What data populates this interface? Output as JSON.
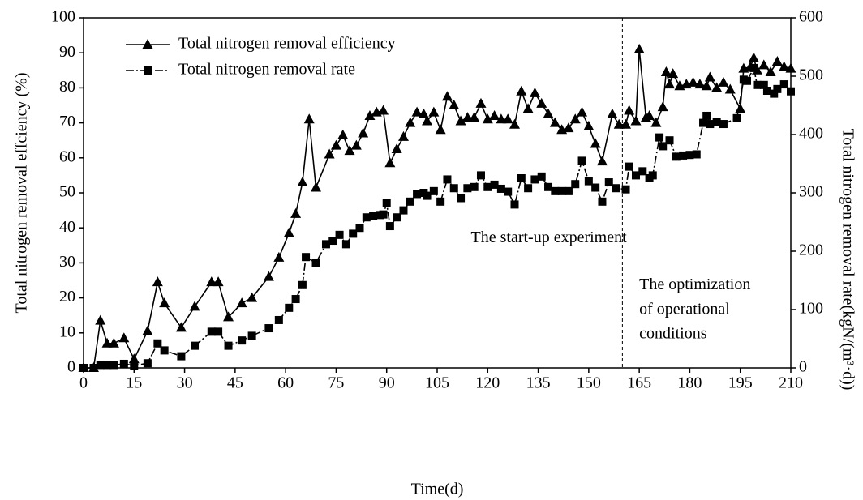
{
  "chart_data": {
    "type": "line",
    "xlabel": "Time(d)",
    "ylabel": "Total nitrogen removal effciency (%)",
    "y2label": "Total nitrogen removal rate(kgN/(m³·d))",
    "xlim": [
      0,
      210
    ],
    "xticks": [
      0,
      15,
      30,
      45,
      60,
      75,
      90,
      105,
      120,
      135,
      150,
      165,
      180,
      195,
      210
    ],
    "ylim": [
      0,
      100
    ],
    "yticks": [
      0,
      10,
      20,
      30,
      40,
      50,
      60,
      70,
      80,
      90,
      100
    ],
    "y2lim": [
      0,
      600
    ],
    "y2ticks": [
      0,
      100,
      200,
      300,
      400,
      500,
      600
    ],
    "legend": "upper left",
    "vline": {
      "x": 160,
      "style": "dashed"
    },
    "annotations": [
      {
        "text": "The start-up experiment",
        "x": 115,
        "y": 37
      },
      {
        "text": "The optimization",
        "x": 165,
        "y": 23.5
      },
      {
        "text": "of operational",
        "x": 165,
        "y": 16.5
      },
      {
        "text": "conditions",
        "x": 165,
        "y": 9.5
      }
    ],
    "series": [
      {
        "name": "Total nitrogen removal efficiency",
        "color": "#000000",
        "marker": "triangle",
        "axis": "y",
        "x": [
          0,
          3,
          5,
          7,
          9,
          12,
          15,
          19,
          22,
          24,
          29,
          33,
          38,
          40,
          43,
          47,
          50,
          55,
          58,
          61,
          63,
          65,
          67,
          69,
          73,
          75,
          77,
          79,
          81,
          83,
          85,
          87,
          89,
          91,
          93,
          95,
          97,
          99,
          101,
          102,
          104,
          106,
          108,
          110,
          112,
          114,
          116,
          118,
          120,
          122,
          124,
          126,
          128,
          130,
          132,
          134,
          136,
          138,
          140,
          142,
          144,
          146,
          148,
          150,
          152,
          154,
          157,
          159,
          161,
          162,
          164,
          165,
          167,
          168,
          170,
          172,
          173,
          174,
          175,
          177,
          179,
          181,
          183,
          185,
          186,
          188,
          190,
          192,
          195,
          196,
          198,
          199,
          200,
          202,
          204,
          206,
          208,
          210
        ],
        "values": [
          0,
          0,
          13.5,
          7,
          7,
          8.5,
          2.5,
          10.5,
          24.5,
          18.5,
          11.5,
          17.5,
          24.5,
          24.5,
          14.5,
          18.5,
          20,
          26,
          31.5,
          38.5,
          44,
          53,
          71,
          51.5,
          61,
          63.5,
          66.5,
          62,
          63.5,
          67,
          72,
          73,
          73.5,
          58.5,
          62.5,
          66,
          70,
          73,
          72.5,
          70.5,
          73,
          68,
          77.5,
          75,
          70.5,
          71.5,
          71.5,
          75.5,
          71,
          72,
          71,
          71,
          69.5,
          79,
          74,
          78.5,
          75.5,
          72.5,
          70,
          68,
          68.5,
          71,
          73,
          69,
          64,
          59,
          72.5,
          69.5,
          69.5,
          73.5,
          70.5,
          91,
          71.5,
          72,
          70,
          74.5,
          84.5,
          81,
          84,
          80.5,
          81,
          81.5,
          81,
          80.5,
          83,
          80,
          81.5,
          79.5,
          74,
          85.5,
          86,
          88.5,
          85,
          86.5,
          84.5,
          87.5,
          86,
          85.5
        ]
      },
      {
        "name": "Total nitrogen removal rate",
        "color": "#000000",
        "marker": "square",
        "axis": "y2",
        "x": [
          0,
          3,
          5,
          7,
          9,
          12,
          15,
          19,
          22,
          24,
          29,
          33,
          38,
          40,
          43,
          47,
          50,
          55,
          58,
          61,
          63,
          65,
          66,
          69,
          72,
          74,
          76,
          78,
          80,
          82,
          84,
          86,
          88,
          89,
          90,
          91,
          93,
          95,
          97,
          99,
          101,
          102,
          104,
          106,
          108,
          110,
          112,
          114,
          116,
          118,
          120,
          122,
          124,
          126,
          128,
          130,
          132,
          134,
          136,
          138,
          140,
          142,
          144,
          146,
          148,
          150,
          152,
          154,
          156,
          158,
          161,
          162,
          164,
          166,
          168,
          169,
          171,
          172,
          174,
          176,
          178,
          180,
          182,
          184,
          185,
          186,
          188,
          190,
          194,
          196,
          197,
          199,
          200,
          202,
          203,
          205,
          206,
          208,
          210
        ],
        "values": [
          0,
          0,
          5,
          5,
          5,
          7,
          4,
          8,
          42,
          30,
          20,
          38,
          62,
          62,
          38,
          47,
          55,
          68,
          82,
          103,
          118,
          142,
          190,
          180,
          212,
          218,
          228,
          212,
          230,
          240,
          258,
          260,
          262,
          263,
          282,
          243,
          258,
          270,
          285,
          298,
          300,
          295,
          303,
          285,
          323,
          308,
          291,
          308,
          310,
          330,
          310,
          314,
          307,
          302,
          280,
          325,
          308,
          323,
          328,
          310,
          303,
          303,
          303,
          315,
          355,
          320,
          309,
          285,
          318,
          308,
          306,
          345,
          330,
          337,
          325,
          330,
          395,
          380,
          390,
          362,
          364,
          365,
          366,
          420,
          432,
          418,
          422,
          418,
          428,
          494,
          492,
          514,
          485,
          485,
          475,
          470,
          478,
          486,
          474
        ]
      }
    ]
  }
}
